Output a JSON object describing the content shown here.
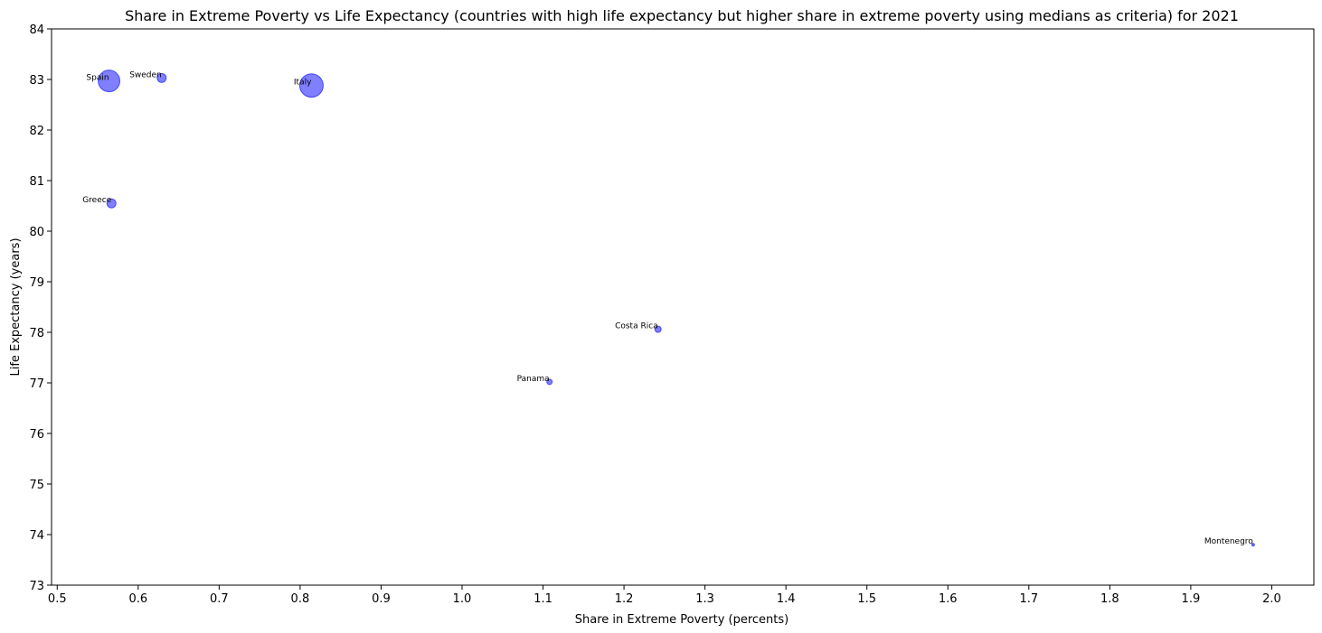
{
  "chart_data": {
    "type": "scatter",
    "title": "Share in Extreme Poverty vs Life Expectancy (countries with high life expectancy but higher share in extreme poverty using medians as criteria) for 2021",
    "xlabel": "Share in Extreme Poverty (percents)",
    "ylabel": "Life Expectancy (years)",
    "xlim": [
      0.493,
      2.052
    ],
    "ylim": [
      73,
      84
    ],
    "xticks": [
      "0.5",
      "0.6",
      "0.7",
      "0.8",
      "0.9",
      "1.0",
      "1.1",
      "1.2",
      "1.3",
      "1.4",
      "1.5",
      "1.6",
      "1.7",
      "1.8",
      "1.9",
      "2.0"
    ],
    "yticks": [
      "73",
      "74",
      "75",
      "76",
      "77",
      "78",
      "79",
      "80",
      "81",
      "82",
      "83",
      "84"
    ],
    "grid": false,
    "point_color": "#0000ff",
    "point_alpha": 0.5,
    "points": [
      {
        "label": "Spain",
        "x": 0.564,
        "y": 82.97,
        "size": 12
      },
      {
        "label": "Sweden",
        "x": 0.629,
        "y": 83.03,
        "size": 5
      },
      {
        "label": "Italy",
        "x": 0.814,
        "y": 82.88,
        "size": 13
      },
      {
        "label": "Greece",
        "x": 0.567,
        "y": 80.55,
        "size": 5
      },
      {
        "label": "Costa Rica",
        "x": 1.242,
        "y": 78.06,
        "size": 3.5
      },
      {
        "label": "Panama",
        "x": 1.108,
        "y": 77.02,
        "size": 3
      },
      {
        "label": "Montenegro",
        "x": 1.977,
        "y": 73.8,
        "size": 1.5
      }
    ]
  }
}
